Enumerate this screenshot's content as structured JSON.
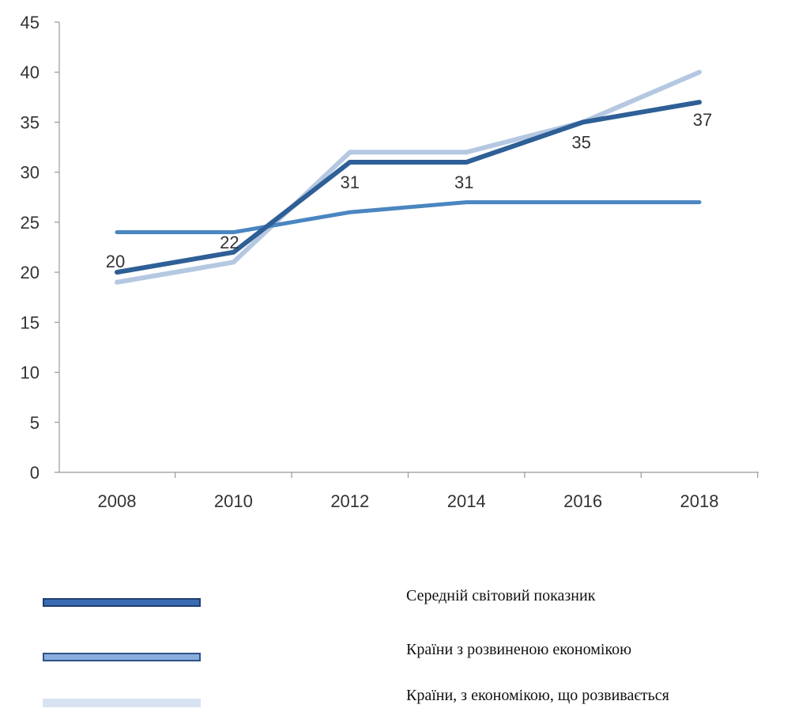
{
  "chart_data": {
    "type": "line",
    "x": [
      "2008",
      "2010",
      "2012",
      "2014",
      "2016",
      "2018"
    ],
    "ylim": [
      0,
      45
    ],
    "y_ticks": [
      "0",
      "5",
      "10",
      "15",
      "20",
      "25",
      "30",
      "35",
      "40",
      "45"
    ],
    "grid": false,
    "legend_position": "bottom",
    "series": [
      {
        "name": "Середній світовий показник",
        "values": [
          20,
          22,
          31,
          31,
          35,
          37
        ],
        "data_labels": [
          "20",
          "22",
          "31",
          "31",
          "35",
          "37"
        ],
        "color": "#2e5f96",
        "swatch_fill": "#3a6cb2",
        "swatch_border": "#1f3f73"
      },
      {
        "name": "Країни з розвиненою економікою",
        "values": [
          24,
          24,
          26,
          27,
          27,
          27
        ],
        "color": "#4a86c0",
        "swatch_fill": "#8aaedb",
        "swatch_border": "#2f538a"
      },
      {
        "name": "Країни, з економікою, що розвивається",
        "values": [
          19,
          21,
          32,
          32,
          35,
          40
        ],
        "color": "#b5c8e2",
        "swatch_fill": "#d8e3f2",
        "swatch_border": "#d8e3f2"
      }
    ]
  }
}
